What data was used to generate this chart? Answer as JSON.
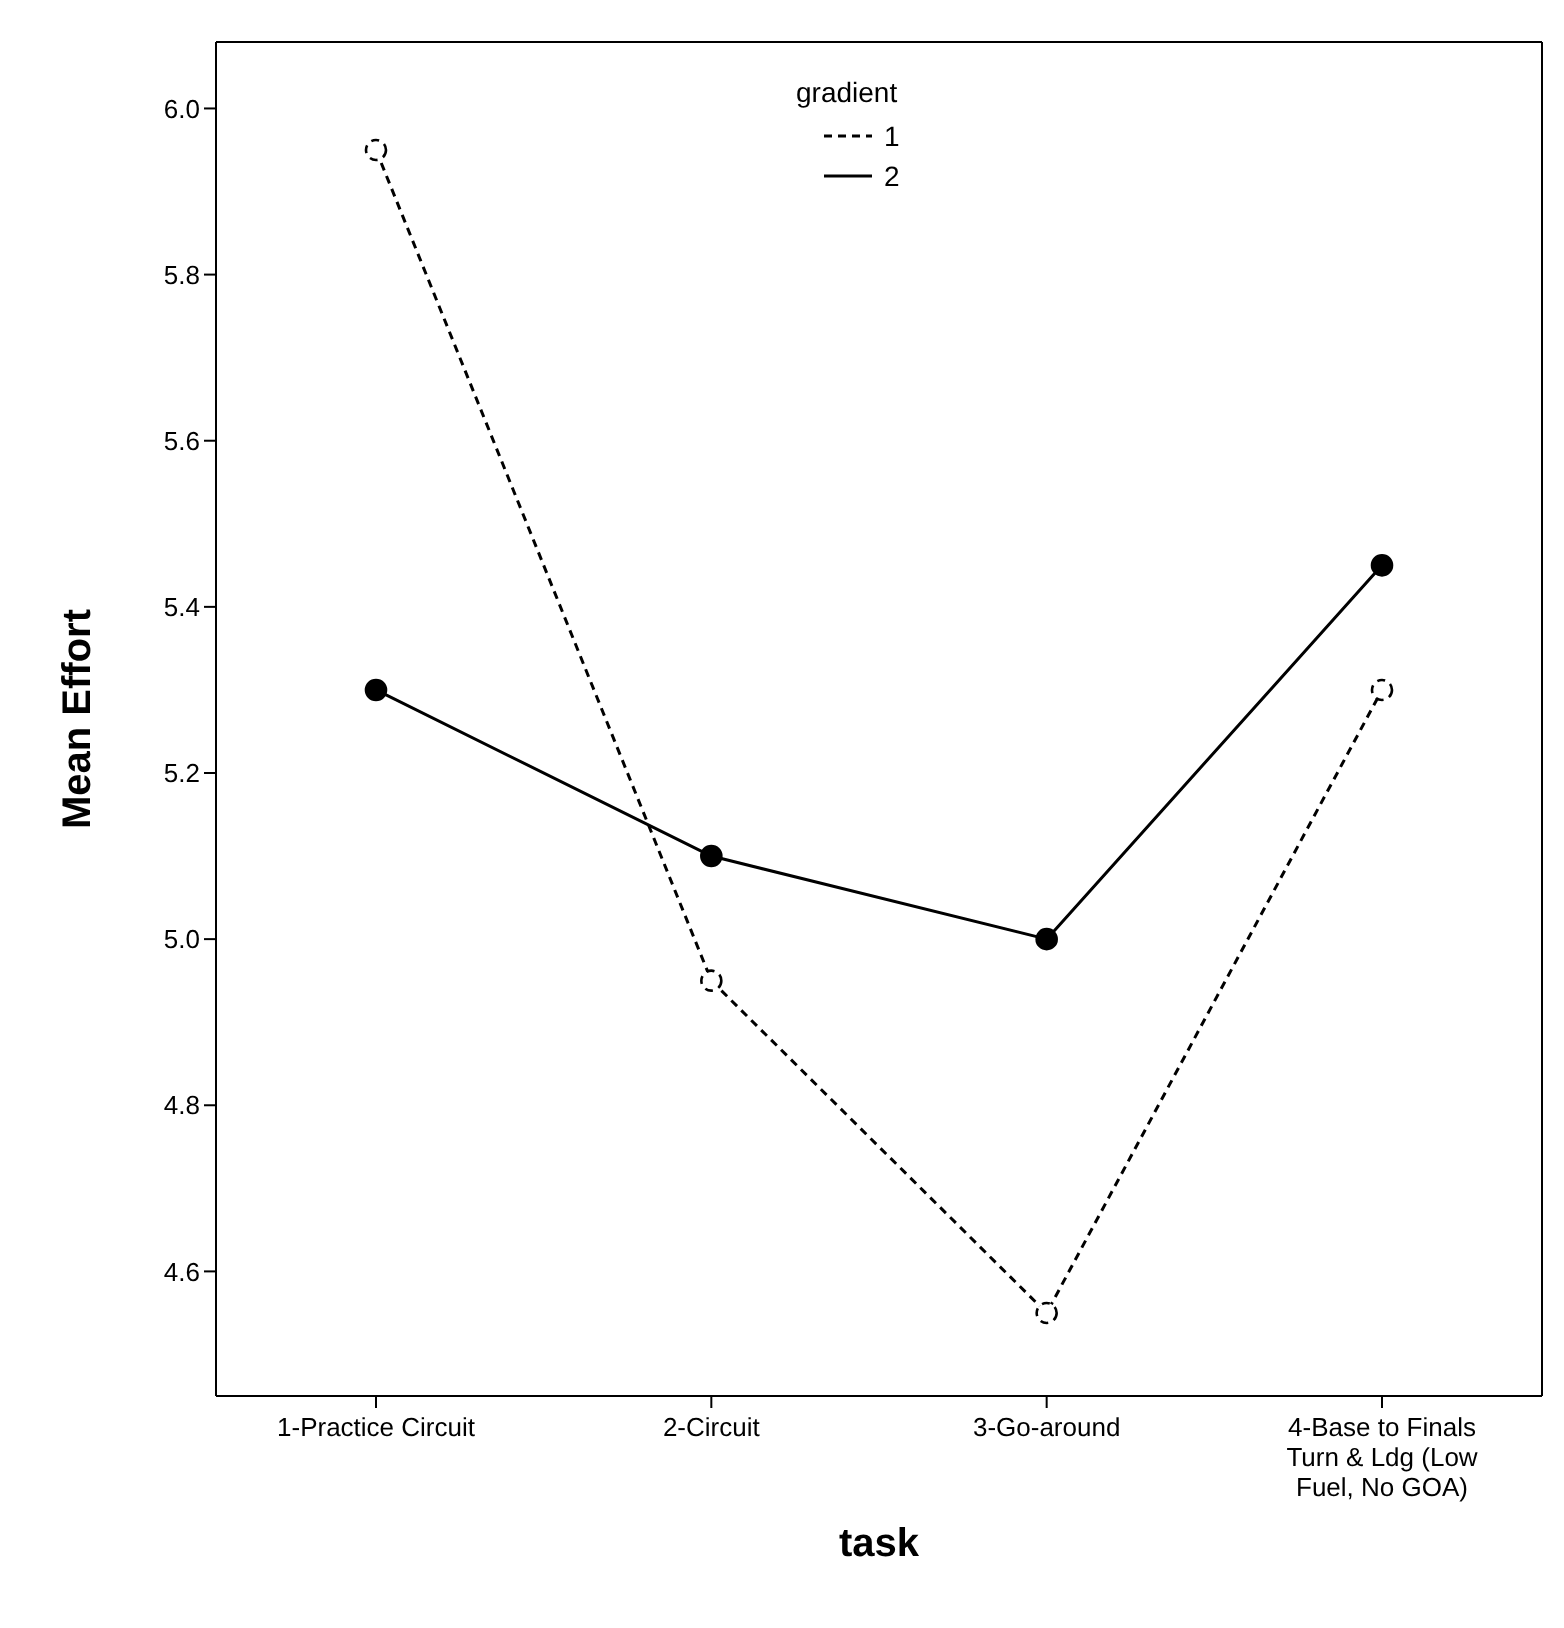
{
  "chart_data": {
    "type": "line",
    "xlabel": "task",
    "ylabel": "Mean Effort",
    "legend_title": "gradient",
    "legend": "top",
    "marker": "circle",
    "categories": [
      "1-Practice Circuit",
      "2-Circuit",
      "3-Go-around",
      "4-Base to Finals Turn & Ldg (Low Fuel, No GOA)"
    ],
    "ylim": [
      4.45,
      6.08
    ],
    "yticks": [
      4.6,
      4.8,
      {
        "value": 5.0,
        "label": "5.0"
      },
      5.2,
      5.4,
      5.6,
      5.8,
      {
        "value": 6.0,
        "label": "6.0"
      }
    ],
    "series": [
      {
        "name": "1",
        "color": "#000000",
        "line_style": "dashed",
        "values": [
          5.95,
          4.95,
          4.55,
          5.3
        ]
      },
      {
        "name": "2",
        "color": "#000000",
        "line_style": "solid",
        "values": [
          5.3,
          5.1,
          5.0,
          5.45
        ]
      }
    ]
  }
}
